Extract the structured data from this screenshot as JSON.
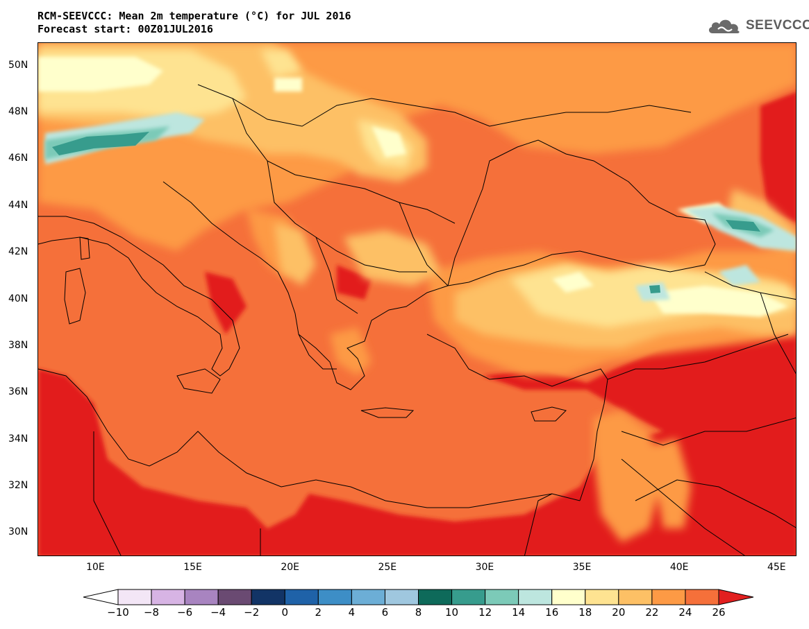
{
  "title": {
    "line1": "RCM-SEEVCCC: Mean 2m temperature (°C) for JUL 2016",
    "line2": "Forecast start: 00Z01JUL2016"
  },
  "logo": {
    "text": "SEEVCCC",
    "icon": "cloud-logo-icon"
  },
  "map": {
    "lat_range": [
      29,
      51
    ],
    "lon_range": [
      7,
      46
    ],
    "lat_ticks": [
      "50N",
      "48N",
      "46N",
      "44N",
      "42N",
      "40N",
      "38N",
      "36N",
      "34N",
      "32N",
      "30N"
    ],
    "lon_ticks": [
      "10E",
      "15E",
      "20E",
      "25E",
      "30E",
      "35E",
      "40E",
      "45E"
    ]
  },
  "colorbar": {
    "labels": [
      "−10",
      "−8",
      "−6",
      "−4",
      "−2",
      "0",
      "2",
      "4",
      "6",
      "8",
      "10",
      "12",
      "14",
      "16",
      "18",
      "20",
      "22",
      "24",
      "26"
    ],
    "colors": {
      "under": "#ffffff",
      "bins": [
        "#f3e6f6",
        "#d7b4e4",
        "#a884c0",
        "#6a4a72",
        "#123466",
        "#1f62a8",
        "#3d8ec6",
        "#6caed6",
        "#9fc7df",
        "#0e6a5a",
        "#379c8d",
        "#7ccab8",
        "#bde6df",
        "#ffffcc",
        "#fee391",
        "#fdc065",
        "#fd9a45",
        "#f5703a"
      ],
      "over": "#e21f1f"
    }
  }
}
